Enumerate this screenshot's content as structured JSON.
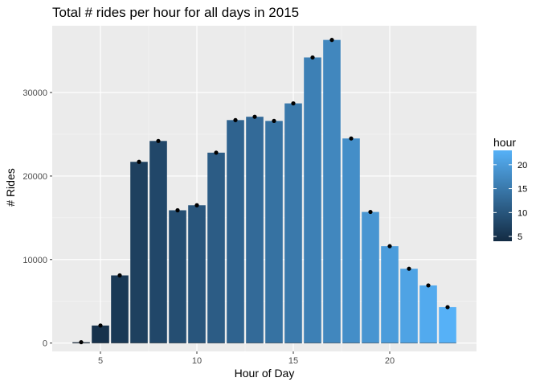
{
  "chart_data": {
    "type": "bar",
    "title": "Total # rides per hour for all days in 2015",
    "xlabel": "Hour of Day",
    "ylabel": "# Rides",
    "xlim": [
      2.5,
      24.5
    ],
    "ylim": [
      -1000,
      38000
    ],
    "x_ticks": [
      5,
      10,
      15,
      20
    ],
    "y_ticks": [
      0,
      10000,
      20000,
      30000
    ],
    "grid": true,
    "legend": {
      "title": "hour",
      "position": "right",
      "ticks": [
        5,
        10,
        15,
        20
      ],
      "range": [
        4,
        23
      ],
      "color_low": "#132B43",
      "color_high": "#56B1F7"
    },
    "series": [
      {
        "x": [
          4,
          5,
          6,
          7,
          8,
          9,
          10,
          11,
          12,
          13,
          14,
          15,
          16,
          17,
          18,
          19,
          20,
          21,
          22,
          23
        ],
        "values": [
          100,
          2100,
          8100,
          21700,
          24200,
          15900,
          16500,
          22800,
          26700,
          27100,
          26600,
          28700,
          34200,
          36300,
          24500,
          15700,
          11600,
          8900,
          6900,
          4300
        ]
      }
    ]
  }
}
